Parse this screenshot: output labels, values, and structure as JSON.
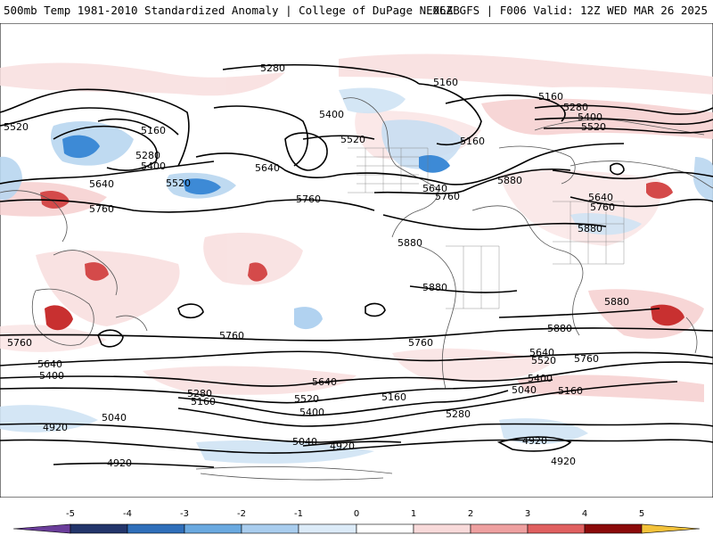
{
  "header": {
    "title": "500mb Temp 1981-2010 Standardized Anomaly | College of DuPage NEXLAB",
    "run_info": "06Z GFS | F006 Valid: 12Z WED MAR 26 2025"
  },
  "contour_labels": {
    "north_pacific_top": "5280",
    "west_pacific_5520": "5520",
    "west_pacific_5160": "5160",
    "west_pacific_5280": "5280",
    "west_pacific_5400": "5400",
    "west_pacific_5640": "5640",
    "west_pacific_5520b": "5520",
    "china_5760": "5760",
    "npac_5400": "5400",
    "npac_5640": "5640",
    "npac_5760": "5760",
    "na_5520": "5520",
    "na_5640": "5640",
    "na_5760": "5760",
    "canada_5160": "5160",
    "canada_5160b": "5160",
    "atlantic_5880": "5880",
    "greenland_5160": "5160",
    "europe_5280": "5280",
    "europe_5400": "5400",
    "europe_5520": "5520",
    "europe_5640": "5640",
    "europe_5760": "5760",
    "caribbean_5880": "5880",
    "samerica_5880": "5880",
    "africa_5880": "5880",
    "indian_5880": "5880",
    "safrica_5880": "5880",
    "left_5760": "5760",
    "pacific_5760": "5760",
    "satl_5760": "5760",
    "sind_5640": "5640",
    "sind_5520": "5520",
    "sind_5760": "5760",
    "left_5640": "5640",
    "left_5400": "5400",
    "spac_5280": "5280",
    "spac_5160": "5160",
    "spac_5640": "5640",
    "spac_5520": "5520",
    "spac_5400": "5400",
    "samer_5160": "5160",
    "satl_5400": "5400",
    "satl_5040": "5040",
    "satl_5160": "5160",
    "satl_5280": "5280",
    "left_5040": "5040",
    "left_4920": "4920",
    "spac_5040": "5040",
    "spac_4920": "4920",
    "satl_4920": "4920",
    "ant_4920": "4920",
    "ant_4920b": "4920"
  },
  "colorbar": {
    "ticks": [
      "-5",
      "-4",
      "-3",
      "-2",
      "-1",
      "0",
      "1",
      "2",
      "3",
      "4",
      "5"
    ],
    "colors": [
      "#6a3d9a",
      "#23356b",
      "#2f6fba",
      "#6aa9e0",
      "#a9cdee",
      "#dcebf8",
      "#ffffff",
      "#f8dada",
      "#eea0a0",
      "#e06060",
      "#c02828",
      "#8b0a0a",
      "#f3c23a"
    ]
  },
  "colors": {
    "anom_neg_strong": "#2f7fd0",
    "anom_neg_light": "#b9d6f0",
    "anom_pos_light": "#f6cccc",
    "anom_pos_strong": "#d23a3a",
    "contour": "#000000",
    "coastline": "#555555"
  }
}
